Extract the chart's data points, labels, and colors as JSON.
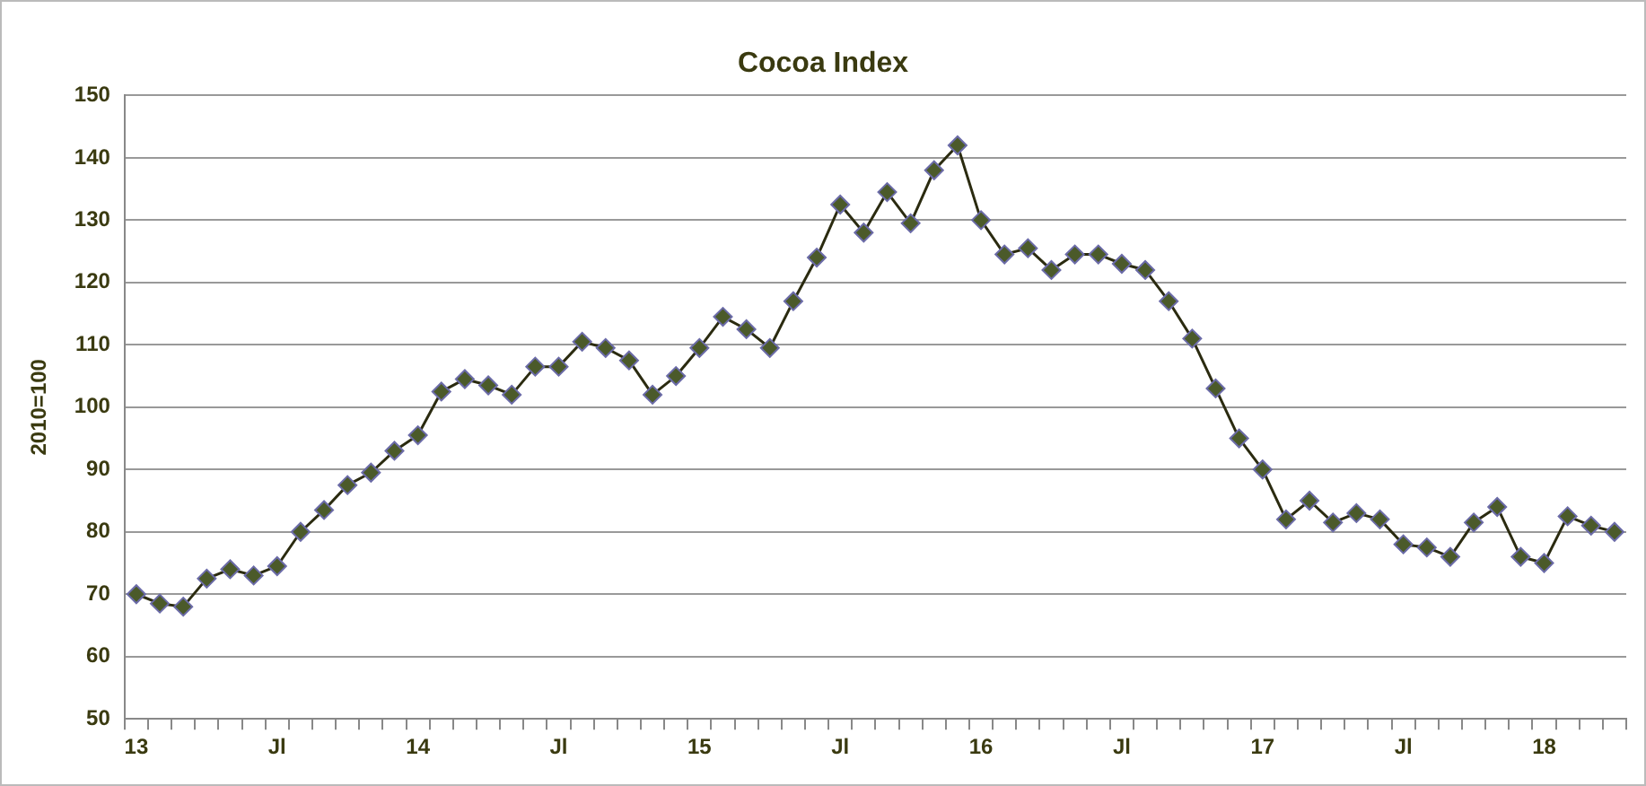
{
  "chart_data": {
    "type": "line",
    "title": "Cocoa Index",
    "ylabel": "2010=100",
    "categories": [
      "13",
      null,
      null,
      null,
      null,
      null,
      "Jl",
      null,
      null,
      null,
      null,
      null,
      "14",
      null,
      null,
      null,
      null,
      null,
      "Jl",
      null,
      null,
      null,
      null,
      null,
      "15",
      null,
      null,
      null,
      null,
      null,
      "Jl",
      null,
      null,
      null,
      null,
      null,
      "16",
      null,
      null,
      null,
      null,
      null,
      "Jl",
      null,
      null,
      null,
      null,
      null,
      "17",
      null,
      null,
      null,
      null,
      null,
      "Jl",
      null,
      null,
      null,
      null,
      null,
      "18",
      null,
      null,
      null
    ],
    "series": [
      {
        "color": "#4b5a2a",
        "values": [
          70,
          68.5,
          68,
          72.5,
          74,
          73,
          74.5,
          80,
          83.5,
          87.5,
          89.5,
          93,
          95.5,
          102.5,
          104.5,
          103.5,
          102,
          106.5,
          106.5,
          110.5,
          109.5,
          107.5,
          102,
          105,
          109.5,
          114.5,
          112.5,
          109.5,
          117,
          124,
          132.5,
          128,
          134.5,
          129.5,
          138,
          142,
          130,
          124.5,
          125.5,
          122,
          124.5,
          124.5,
          123,
          122,
          117,
          111,
          103,
          95,
          90,
          82,
          85,
          81.5,
          83,
          82,
          78,
          77.5,
          76,
          81.5,
          84,
          76,
          75,
          82.5,
          81,
          80
        ]
      }
    ],
    "ylim": [
      50,
      150
    ],
    "yticks": [
      50,
      60,
      70,
      80,
      90,
      100,
      110,
      120,
      130,
      140,
      150
    ],
    "grid": "y",
    "legend": false,
    "marker": "diamond",
    "line_style": "solid"
  }
}
